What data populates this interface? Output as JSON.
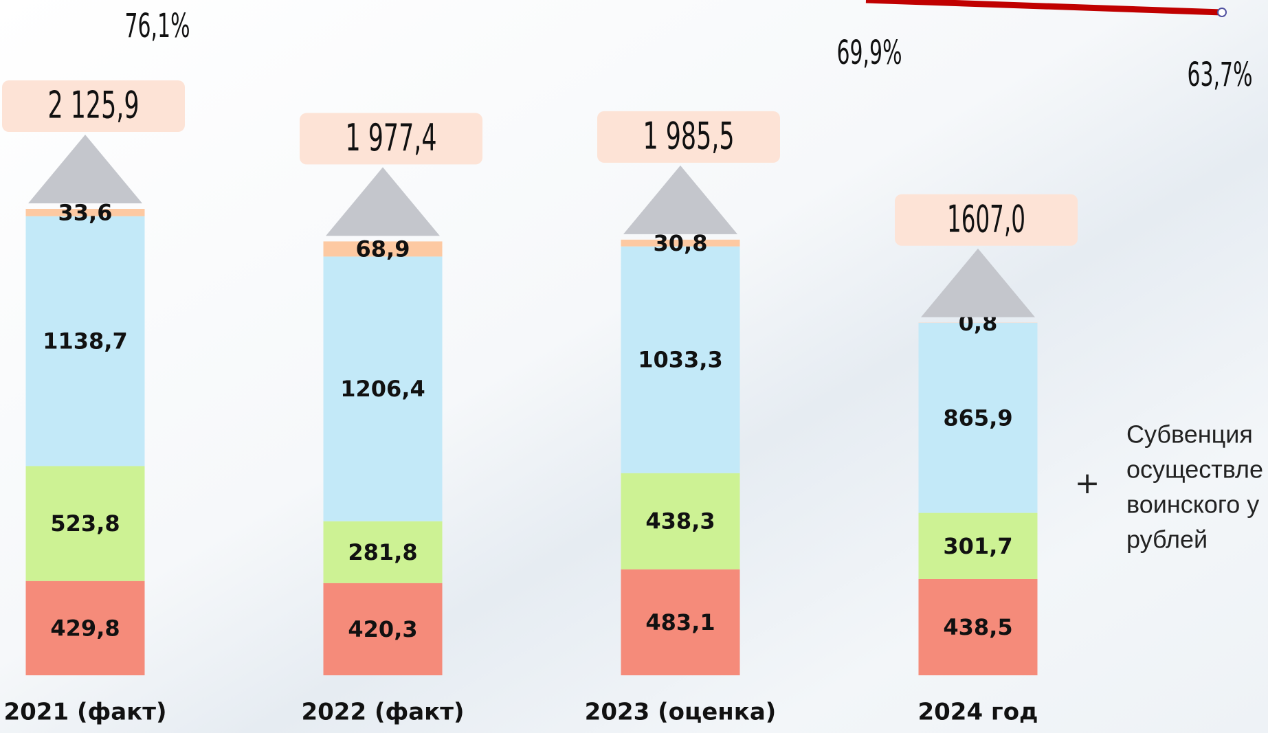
{
  "chart_data": {
    "type": "stacked-bar",
    "categories": [
      "2021 (факт)",
      "2022 (факт)",
      "2023 (оценка)",
      "2024 год"
    ],
    "series": [
      {
        "color": "#f58b7a",
        "values": [
          429.8,
          420.3,
          483.1,
          438.5
        ],
        "value_labels": [
          "429,8",
          "420,3",
          "483,1",
          "438,5"
        ]
      },
      {
        "color": "#cdf294",
        "values": [
          523.8,
          281.8,
          438.3,
          301.7
        ],
        "value_labels": [
          "523,8",
          "281,8",
          "438,3",
          "301,7"
        ]
      },
      {
        "color": "#c3e9f8",
        "values": [
          1138.7,
          1206.4,
          1033.3,
          865.9
        ],
        "value_labels": [
          "1138,7",
          "1206,4",
          "1033,3",
          "865,9"
        ]
      },
      {
        "color": "#fdc9a2",
        "values": [
          33.6,
          68.9,
          30.8,
          0.8
        ],
        "value_labels": [
          "33,6",
          "68,9",
          "30,8",
          "0,8"
        ]
      }
    ],
    "totals": [
      2125.9,
      1977.4,
      1985.5,
      1607.0
    ],
    "total_labels": [
      "2 125,9",
      "1 977,4",
      "1 985,5",
      "1607,0"
    ],
    "percents": [
      76.1,
      69.9,
      63.7
    ],
    "percent_labels": [
      "76,1%",
      "69,9%",
      "63,7%"
    ],
    "annotation": [
      "Субвенция",
      "осуществле",
      "воинского у",
      "рублей"
    ]
  }
}
